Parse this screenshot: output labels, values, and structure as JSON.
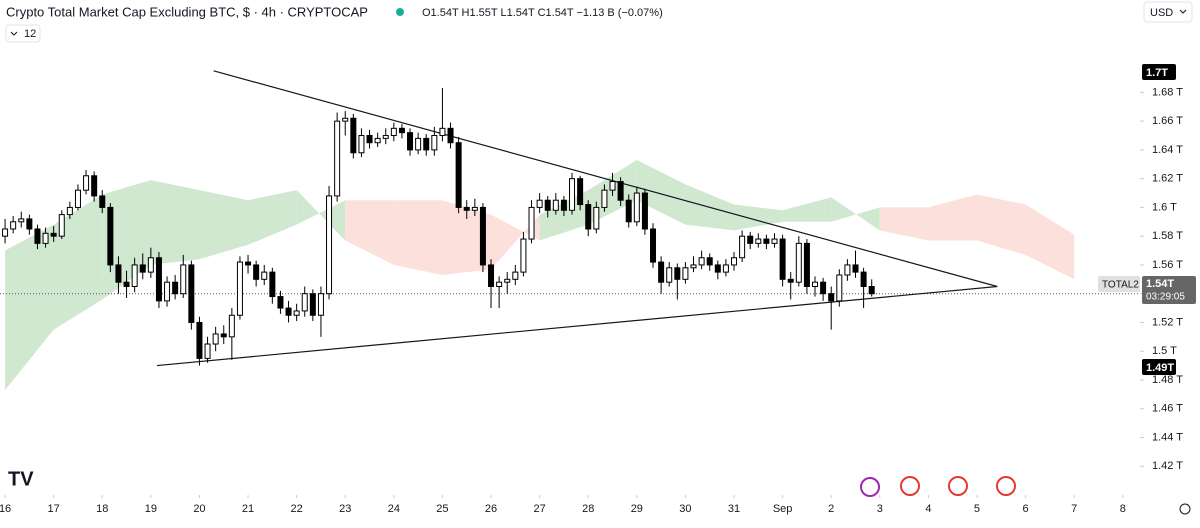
{
  "header": {
    "title": "Crypto Total Market Cap Excluding BTC, $ · 4h · CRYPTOCAP",
    "ohlc": "O1.54T H1.55T L1.54T C1.54T −1.13 B (−0.07%)",
    "currency": "USD",
    "interval_count": "12"
  },
  "chart_data": {
    "type": "candlestick",
    "x": [
      0,
      4,
      8,
      12,
      16,
      20,
      24,
      28,
      32,
      36,
      40,
      44,
      48,
      52,
      56,
      60,
      64,
      68,
      72,
      76,
      80,
      84,
      88,
      92,
      96,
      100,
      104,
      108,
      112,
      116,
      120,
      124,
      128,
      132,
      136,
      140,
      144,
      148,
      152,
      156,
      160,
      164,
      168,
      172,
      176,
      180,
      184,
      188,
      192,
      196,
      200,
      204,
      208,
      212,
      216,
      220,
      224,
      228,
      232,
      236,
      240,
      244,
      248,
      252,
      256,
      260,
      264,
      268,
      272,
      276,
      280,
      284,
      288,
      292,
      296,
      300,
      304,
      308,
      312,
      316,
      320,
      324,
      328,
      332,
      336,
      340,
      344,
      348,
      352,
      356,
      360,
      364,
      368,
      372,
      376,
      380,
      384,
      388,
      392,
      396,
      400,
      404,
      408,
      412,
      416,
      420,
      424,
      428
    ],
    "ohlc": [
      [
        1.58,
        1.592,
        1.575,
        1.585
      ],
      [
        1.585,
        1.594,
        1.582,
        1.59
      ],
      [
        1.59,
        1.597,
        1.586,
        1.592
      ],
      [
        1.592,
        1.595,
        1.581,
        1.585
      ],
      [
        1.585,
        1.588,
        1.571,
        1.575
      ],
      [
        1.575,
        1.586,
        1.572,
        1.582
      ],
      [
        1.582,
        1.587,
        1.576,
        1.58
      ],
      [
        1.58,
        1.598,
        1.578,
        1.595
      ],
      [
        1.595,
        1.604,
        1.592,
        1.6
      ],
      [
        1.6,
        1.616,
        1.598,
        1.612
      ],
      [
        1.612,
        1.626,
        1.609,
        1.622
      ],
      [
        1.622,
        1.625,
        1.604,
        1.608
      ],
      [
        1.608,
        1.612,
        1.596,
        1.6
      ],
      [
        1.6,
        1.603,
        1.555,
        1.56
      ],
      [
        1.56,
        1.566,
        1.54,
        1.548
      ],
      [
        1.548,
        1.556,
        1.537,
        1.545
      ],
      [
        1.545,
        1.565,
        1.541,
        1.56
      ],
      [
        1.56,
        1.568,
        1.55,
        1.555
      ],
      [
        1.555,
        1.572,
        1.551,
        1.565
      ],
      [
        1.565,
        1.569,
        1.53,
        1.535
      ],
      [
        1.535,
        1.552,
        1.531,
        1.548
      ],
      [
        1.548,
        1.553,
        1.536,
        1.54
      ],
      [
        1.54,
        1.567,
        1.537,
        1.56
      ],
      [
        1.56,
        1.563,
        1.515,
        1.52
      ],
      [
        1.52,
        1.524,
        1.49,
        1.495
      ],
      [
        1.495,
        1.51,
        1.492,
        1.505
      ],
      [
        1.505,
        1.517,
        1.5,
        1.512
      ],
      [
        1.512,
        1.518,
        1.505,
        1.51
      ],
      [
        1.51,
        1.53,
        1.494,
        1.525
      ],
      [
        1.525,
        1.566,
        1.522,
        1.562
      ],
      [
        1.562,
        1.567,
        1.554,
        1.56
      ],
      [
        1.56,
        1.563,
        1.545,
        1.55
      ],
      [
        1.55,
        1.56,
        1.546,
        1.555
      ],
      [
        1.555,
        1.558,
        1.533,
        1.538
      ],
      [
        1.538,
        1.542,
        1.526,
        1.53
      ],
      [
        1.53,
        1.535,
        1.52,
        1.525
      ],
      [
        1.525,
        1.533,
        1.521,
        1.528
      ],
      [
        1.528,
        1.545,
        1.524,
        1.54
      ],
      [
        1.54,
        1.543,
        1.521,
        1.525
      ],
      [
        1.525,
        1.545,
        1.51,
        1.54
      ],
      [
        1.54,
        1.615,
        1.536,
        1.608
      ],
      [
        1.608,
        1.666,
        1.604,
        1.66
      ],
      [
        1.66,
        1.667,
        1.65,
        1.662
      ],
      [
        1.662,
        1.665,
        1.634,
        1.638
      ],
      [
        1.638,
        1.655,
        1.635,
        1.65
      ],
      [
        1.65,
        1.654,
        1.641,
        1.645
      ],
      [
        1.645,
        1.652,
        1.642,
        1.648
      ],
      [
        1.648,
        1.655,
        1.644,
        1.65
      ],
      [
        1.65,
        1.659,
        1.646,
        1.655
      ],
      [
        1.655,
        1.658,
        1.648,
        1.652
      ],
      [
        1.652,
        1.655,
        1.636,
        1.64
      ],
      [
        1.64,
        1.652,
        1.637,
        1.648
      ],
      [
        1.648,
        1.651,
        1.636,
        1.64
      ],
      [
        1.64,
        1.656,
        1.636,
        1.65
      ],
      [
        1.65,
        1.683,
        1.646,
        1.655
      ],
      [
        1.655,
        1.659,
        1.641,
        1.645
      ],
      [
        1.645,
        1.649,
        1.596,
        1.6
      ],
      [
        1.6,
        1.605,
        1.592,
        1.598
      ],
      [
        1.598,
        1.606,
        1.594,
        1.6
      ],
      [
        1.6,
        1.603,
        1.555,
        1.56
      ],
      [
        1.56,
        1.564,
        1.53,
        1.545
      ],
      [
        1.545,
        1.552,
        1.53,
        1.548
      ],
      [
        1.548,
        1.555,
        1.54,
        1.55
      ],
      [
        1.55,
        1.56,
        1.546,
        1.555
      ],
      [
        1.555,
        1.583,
        1.552,
        1.578
      ],
      [
        1.578,
        1.605,
        1.575,
        1.6
      ],
      [
        1.6,
        1.61,
        1.596,
        1.605
      ],
      [
        1.605,
        1.608,
        1.593,
        1.598
      ],
      [
        1.598,
        1.61,
        1.595,
        1.605
      ],
      [
        1.605,
        1.608,
        1.594,
        1.598
      ],
      [
        1.598,
        1.624,
        1.595,
        1.62
      ],
      [
        1.62,
        1.622,
        1.598,
        1.602
      ],
      [
        1.602,
        1.605,
        1.58,
        1.585
      ],
      [
        1.585,
        1.604,
        1.582,
        1.6
      ],
      [
        1.6,
        1.616,
        1.597,
        1.612
      ],
      [
        1.612,
        1.624,
        1.608,
        1.618
      ],
      [
        1.618,
        1.621,
        1.601,
        1.605
      ],
      [
        1.605,
        1.609,
        1.586,
        1.59
      ],
      [
        1.59,
        1.614,
        1.587,
        1.61
      ],
      [
        1.61,
        1.613,
        1.581,
        1.585
      ],
      [
        1.585,
        1.589,
        1.558,
        1.562
      ],
      [
        1.562,
        1.566,
        1.54,
        1.548
      ],
      [
        1.548,
        1.562,
        1.545,
        1.558
      ],
      [
        1.558,
        1.561,
        1.536,
        1.55
      ],
      [
        1.55,
        1.562,
        1.547,
        1.558
      ],
      [
        1.558,
        1.566,
        1.555,
        1.56
      ],
      [
        1.56,
        1.57,
        1.557,
        1.565
      ],
      [
        1.565,
        1.568,
        1.556,
        1.56
      ],
      [
        1.56,
        1.563,
        1.55,
        1.555
      ],
      [
        1.555,
        1.564,
        1.552,
        1.56
      ],
      [
        1.56,
        1.569,
        1.556,
        1.565
      ],
      [
        1.565,
        1.584,
        1.562,
        1.58
      ],
      [
        1.58,
        1.583,
        1.571,
        1.575
      ],
      [
        1.575,
        1.582,
        1.572,
        1.578
      ],
      [
        1.578,
        1.581,
        1.571,
        1.575
      ],
      [
        1.575,
        1.582,
        1.572,
        1.578
      ],
      [
        1.578,
        1.581,
        1.545,
        1.55
      ],
      [
        1.55,
        1.555,
        1.536,
        1.548
      ],
      [
        1.548,
        1.58,
        1.545,
        1.575
      ],
      [
        1.575,
        1.578,
        1.54,
        1.545
      ],
      [
        1.545,
        1.552,
        1.538,
        1.548
      ],
      [
        1.548,
        1.551,
        1.535,
        1.54
      ],
      [
        1.54,
        1.545,
        1.515,
        1.535
      ],
      [
        1.535,
        1.557,
        1.531,
        1.553
      ],
      [
        1.553,
        1.564,
        1.549,
        1.56
      ],
      [
        1.56,
        1.57,
        1.551,
        1.555
      ],
      [
        1.555,
        1.558,
        1.53,
        1.545
      ],
      [
        1.545,
        1.55,
        1.538,
        1.54
      ]
    ],
    "up_color": "#ffffff",
    "down_color": "#000000",
    "cloud": {
      "x": [
        0,
        24,
        48,
        72,
        96,
        120,
        144,
        168,
        192,
        216,
        240,
        264,
        288,
        312,
        336,
        360,
        384,
        408,
        432,
        456,
        480,
        504,
        528
      ],
      "span_a": [
        1.57,
        1.588,
        1.609,
        1.619,
        1.612,
        1.605,
        1.612,
        1.577,
        1.56,
        1.553,
        1.557,
        1.595,
        1.612,
        1.633,
        1.616,
        1.602,
        1.598,
        1.607,
        1.584,
        1.577,
        1.577,
        1.567,
        1.55
      ],
      "span_b": [
        1.473,
        1.515,
        1.536,
        1.56,
        1.564,
        1.574,
        1.588,
        1.605,
        1.605,
        1.605,
        1.595,
        1.577,
        1.588,
        1.605,
        1.588,
        1.584,
        1.59,
        1.59,
        1.6,
        1.6,
        1.609,
        1.602,
        1.581
      ],
      "up_color": "#cfe8cf",
      "down_color": "#fbe0db"
    },
    "trendlines": [
      {
        "x": [
          103,
          490
        ],
        "y": [
          1.695,
          1.545
        ]
      },
      {
        "x": [
          75,
          490
        ],
        "y": [
          1.49,
          1.545
        ]
      }
    ],
    "price_line": 1.54,
    "price_labels": {
      "high": "1.7T",
      "low": "1.49T",
      "last": "1.54T",
      "countdown": "03:29:05",
      "symbol": "TOTAL2"
    },
    "xlim": [
      -2.5,
      560.5
    ],
    "ylim": [
      1.4,
      1.706
    ],
    "xticks": [
      {
        "value": 0,
        "label": "16"
      },
      {
        "value": 24,
        "label": "17"
      },
      {
        "value": 48,
        "label": "18"
      },
      {
        "value": 72,
        "label": "19"
      },
      {
        "value": 96,
        "label": "20"
      },
      {
        "value": 120,
        "label": "21"
      },
      {
        "value": 144,
        "label": "22"
      },
      {
        "value": 168,
        "label": "23"
      },
      {
        "value": 192,
        "label": "24"
      },
      {
        "value": 216,
        "label": "25"
      },
      {
        "value": 240,
        "label": "26"
      },
      {
        "value": 264,
        "label": "27"
      },
      {
        "value": 288,
        "label": "28"
      },
      {
        "value": 312,
        "label": "29"
      },
      {
        "value": 336,
        "label": "30"
      },
      {
        "value": 360,
        "label": "31"
      },
      {
        "value": 384,
        "label": "Sep"
      },
      {
        "value": 408,
        "label": "2"
      },
      {
        "value": 432,
        "label": "3"
      },
      {
        "value": 456,
        "label": "4"
      },
      {
        "value": 480,
        "label": "5"
      },
      {
        "value": 504,
        "label": "6"
      },
      {
        "value": 528,
        "label": "7"
      },
      {
        "value": 552,
        "label": "8"
      }
    ],
    "yticks": [
      {
        "value": 1.42,
        "label": "1.42 T"
      },
      {
        "value": 1.44,
        "label": "1.44 T"
      },
      {
        "value": 1.46,
        "label": "1.46 T"
      },
      {
        "value": 1.48,
        "label": "1.48 T"
      },
      {
        "value": 1.5,
        "label": "1.5 T"
      },
      {
        "value": 1.52,
        "label": "1.52 T"
      },
      {
        "value": 1.54,
        "label": "1.54 T"
      },
      {
        "value": 1.56,
        "label": "1.56 T"
      },
      {
        "value": 1.58,
        "label": "1.58 T"
      },
      {
        "value": 1.6,
        "label": "1.6 T"
      },
      {
        "value": 1.62,
        "label": "1.62 T"
      },
      {
        "value": 1.64,
        "label": "1.64 T"
      },
      {
        "value": 1.66,
        "label": "1.66 T"
      },
      {
        "value": 1.68,
        "label": "1.68 T"
      }
    ],
    "grid": false
  }
}
